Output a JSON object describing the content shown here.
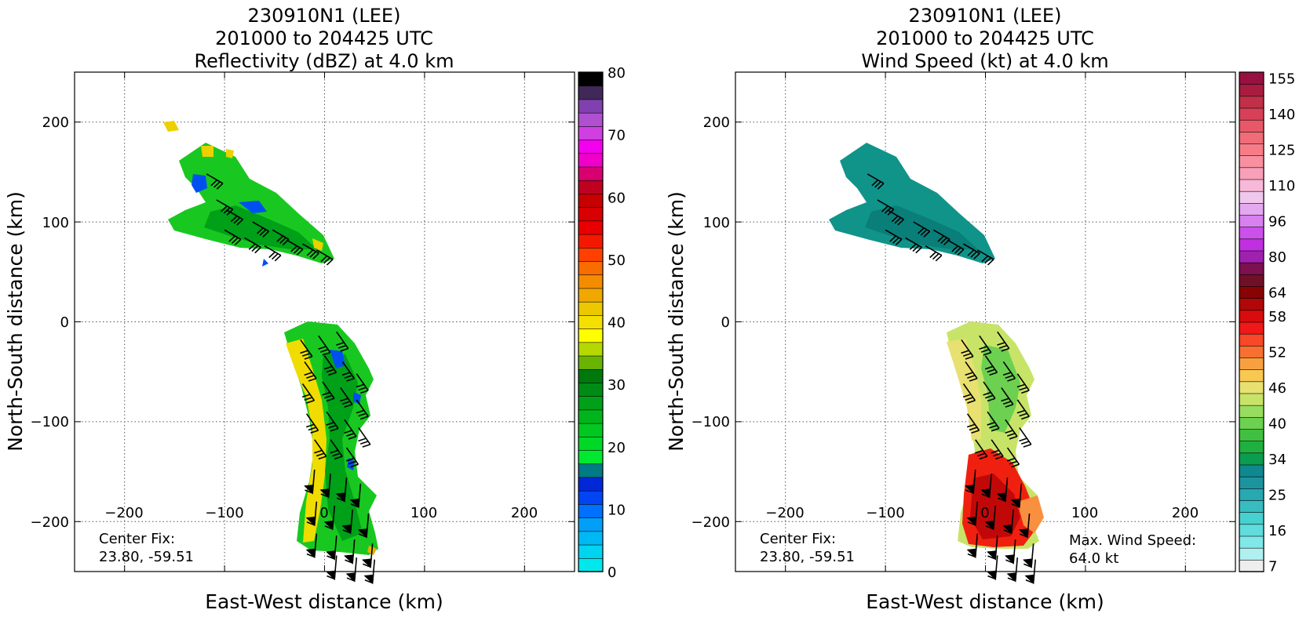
{
  "chart_data": [
    {
      "type": "heatmap",
      "title": [
        "230910N1 (LEE)",
        "201000 to 204425 UTC",
        "Reflectivity (dBZ) at 4.0 km"
      ],
      "xlabel": "East-West distance (km)",
      "ylabel": "North-South distance (km)",
      "xlim": [
        -250,
        250
      ],
      "ylim": [
        -250,
        250
      ],
      "x_ticks": [
        "−200",
        "−100",
        "0",
        "100",
        "200"
      ],
      "y_ticks": [
        "200",
        "100",
        "0",
        "−100",
        "−200"
      ],
      "grid": "dotted",
      "colorbar": {
        "range": [
          0,
          80
        ],
        "tick_labels": [
          "0",
          "10",
          "20",
          "30",
          "40",
          "50",
          "60",
          "70",
          "80"
        ],
        "colors": [
          "#00e8ec",
          "#00d4f0",
          "#00b8f4",
          "#00a0f8",
          "#0070ff",
          "#0044f4",
          "#0028d8",
          "#007a84",
          "#00e830",
          "#00d828",
          "#00c820",
          "#00b41c",
          "#00a018",
          "#008c14",
          "#00780c",
          "#68b400",
          "#b4d800",
          "#ffff00",
          "#f4e000",
          "#ecc800",
          "#f0a800",
          "#f48c00",
          "#f86c00",
          "#ff4000",
          "#f41800",
          "#e80000",
          "#d80000",
          "#c80000",
          "#c00020",
          "#d80070",
          "#f000c8",
          "#f400f0",
          "#d040e0",
          "#b050d0",
          "#8040b0",
          "#402858",
          "#000000"
        ]
      },
      "center_fix": {
        "label": "Center Fix:",
        "value": "23.80, -59.51"
      }
    },
    {
      "type": "heatmap",
      "title": [
        "230910N1 (LEE)",
        "201000 to 204425 UTC",
        "Wind Speed (kt) at 4.0 km"
      ],
      "xlabel": "East-West distance (km)",
      "ylabel": "North-South distance (km)",
      "xlim": [
        -250,
        250
      ],
      "ylim": [
        -250,
        250
      ],
      "x_ticks": [
        "−200",
        "−100",
        "0",
        "100",
        "200"
      ],
      "y_ticks": [
        "200",
        "100",
        "0",
        "−100",
        "−200"
      ],
      "grid": "dotted",
      "colorbar": {
        "tick_labels": [
          "7",
          "16",
          "25",
          "34",
          "40",
          "46",
          "52",
          "58",
          "64",
          "80",
          "96",
          "110",
          "125",
          "140",
          "155"
        ],
        "colors": [
          "#eeeeee",
          "#b0f0f0",
          "#80e8e8",
          "#60dcdc",
          "#48d0d0",
          "#38bcc0",
          "#28a8b0",
          "#1c94a0",
          "#108890",
          "#0c9c50",
          "#20b040",
          "#40c040",
          "#6cd050",
          "#98dc60",
          "#c8e468",
          "#e8e070",
          "#f8c850",
          "#f8a040",
          "#f87030",
          "#f84828",
          "#f01818",
          "#d80c0c",
          "#b00808",
          "#880404",
          "#701028",
          "#7c1050",
          "#a020b0",
          "#c030e0",
          "#cc50ec",
          "#d880f0",
          "#e4a8f0",
          "#f0c8ec",
          "#f8b8d8",
          "#f8a0b8",
          "#f890a0",
          "#f87c88",
          "#f06c78",
          "#e85868",
          "#d84058",
          "#c03048",
          "#a81c40",
          "#981040"
        ]
      },
      "center_fix": {
        "label": "Center Fix:",
        "value": "23.80, -59.51"
      },
      "max_wind": {
        "label": "Max. Wind Speed:",
        "value": "64.0 kt"
      }
    }
  ]
}
